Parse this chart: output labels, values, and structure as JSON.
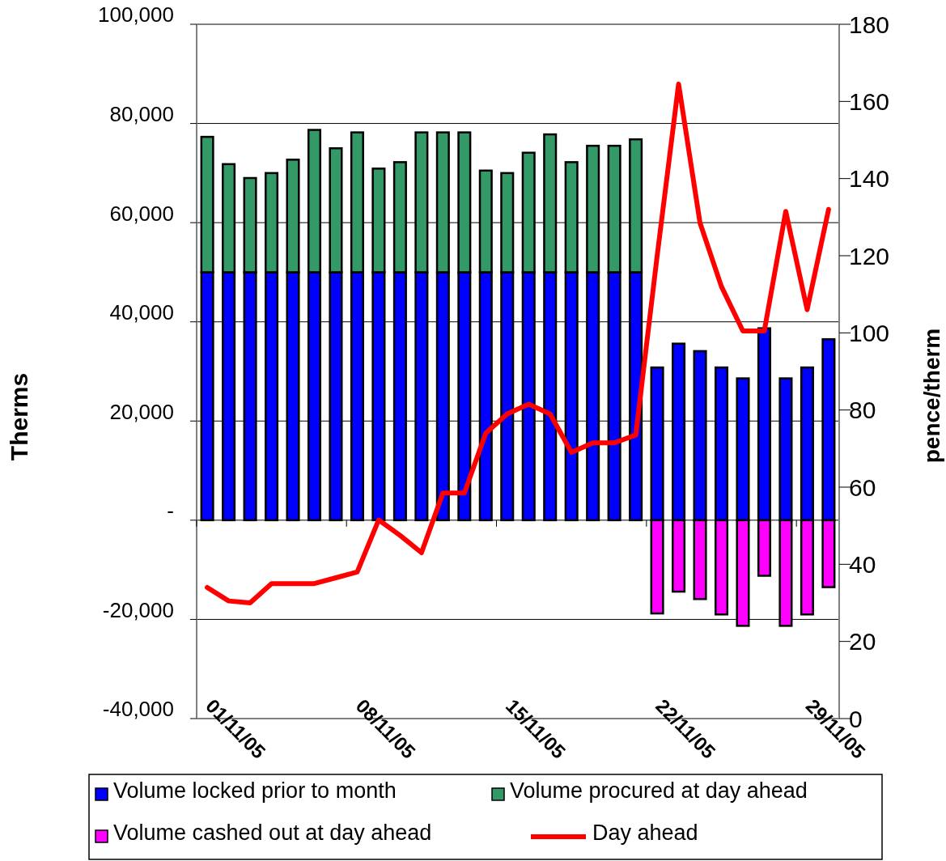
{
  "chart_data": {
    "type": "bar",
    "stacked": true,
    "ylabel": "Therms",
    "y2label": "pence/therm",
    "categories": [
      "01/11/05",
      null,
      null,
      null,
      null,
      null,
      null,
      "08/11/05",
      null,
      null,
      null,
      null,
      null,
      null,
      "15/11/05",
      null,
      null,
      null,
      null,
      null,
      null,
      "22/11/05",
      null,
      null,
      null,
      null,
      null,
      null,
      "29/11/05",
      null
    ],
    "series": [
      {
        "name": "Volume locked prior to month",
        "color": "#0000ff",
        "values": [
          50000,
          50000,
          50000,
          50000,
          50000,
          50000,
          50000,
          50000,
          50000,
          50000,
          50000,
          50000,
          50000,
          50000,
          50000,
          50000,
          50000,
          50000,
          50000,
          50000,
          50000,
          30800,
          35600,
          34100,
          30800,
          28600,
          38700,
          28600,
          30800,
          36500
        ]
      },
      {
        "name": "Volume procured at day ahead",
        "color": "#339966",
        "values": [
          27300,
          21800,
          19000,
          20000,
          22700,
          28700,
          25000,
          28200,
          20900,
          22200,
          28200,
          28200,
          28200,
          20500,
          20000,
          24100,
          27800,
          22200,
          25500,
          25500,
          26800,
          null,
          null,
          null,
          null,
          null,
          null,
          null,
          null,
          null
        ]
      },
      {
        "name": "Volume cashed out at day ahead",
        "color": "#ff00ff",
        "values": [
          null,
          null,
          null,
          null,
          null,
          null,
          null,
          null,
          null,
          null,
          null,
          null,
          null,
          null,
          null,
          null,
          null,
          null,
          null,
          null,
          null,
          -18800,
          -14400,
          -15900,
          -19000,
          -21300,
          -11200,
          -21300,
          -19000,
          -13500
        ]
      },
      {
        "name": "Day ahead",
        "type": "line",
        "axis": "y2",
        "color": "#ff0000",
        "values": [
          34,
          30.5,
          30,
          35,
          35,
          35,
          36.5,
          38,
          51.5,
          47.5,
          43,
          58.5,
          58.5,
          74,
          79,
          81.5,
          79,
          69,
          71.5,
          71.5,
          73.5,
          120,
          164.5,
          128.5,
          112,
          100.5,
          100.5,
          131.5,
          106,
          132
        ]
      }
    ],
    "ylim": [
      -40000,
      100000
    ],
    "yticks": [
      {
        "value": -40000,
        "label": "-40,000"
      },
      {
        "value": -20000,
        "label": "-20,000"
      },
      {
        "value": 0,
        "label": "-"
      },
      {
        "value": 20000,
        "label": "20,000"
      },
      {
        "value": 40000,
        "label": "40,000"
      },
      {
        "value": 60000,
        "label": "60,000"
      },
      {
        "value": 80000,
        "label": "80,000"
      },
      {
        "value": 100000,
        "label": "100,000"
      }
    ],
    "y2lim": [
      0,
      180
    ],
    "y2ticks": [
      0,
      20,
      40,
      60,
      80,
      100,
      120,
      140,
      160,
      180
    ],
    "grid": "y",
    "legend": "bottom"
  }
}
